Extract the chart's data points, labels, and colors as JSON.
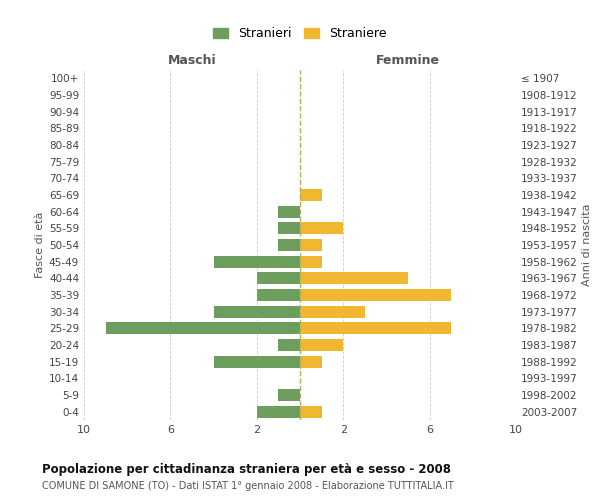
{
  "age_groups": [
    "0-4",
    "5-9",
    "10-14",
    "15-19",
    "20-24",
    "25-29",
    "30-34",
    "35-39",
    "40-44",
    "45-49",
    "50-54",
    "55-59",
    "60-64",
    "65-69",
    "70-74",
    "75-79",
    "80-84",
    "85-89",
    "90-94",
    "95-99",
    "100+"
  ],
  "birth_years": [
    "2003-2007",
    "1998-2002",
    "1993-1997",
    "1988-1992",
    "1983-1987",
    "1978-1982",
    "1973-1977",
    "1968-1972",
    "1963-1967",
    "1958-1962",
    "1953-1957",
    "1948-1952",
    "1943-1947",
    "1938-1942",
    "1933-1937",
    "1928-1932",
    "1923-1927",
    "1918-1922",
    "1913-1917",
    "1908-1912",
    "≤ 1907"
  ],
  "maschi": [
    2,
    1,
    0,
    4,
    1,
    9,
    4,
    2,
    2,
    4,
    1,
    1,
    1,
    0,
    0,
    0,
    0,
    0,
    0,
    0,
    0
  ],
  "femmine": [
    1,
    0,
    0,
    1,
    2,
    7,
    3,
    7,
    5,
    1,
    1,
    2,
    0,
    1,
    0,
    0,
    0,
    0,
    0,
    0,
    0
  ],
  "maschi_color": "#6e9e5e",
  "femmine_color": "#f0b730",
  "center_line_color": "#b0b060",
  "maschi_label": "Stranieri",
  "femmine_label": "Straniere",
  "left_header": "Maschi",
  "right_header": "Femmine",
  "left_yaxis_label": "Fasce di età",
  "right_yaxis_label": "Anni di nascita",
  "title": "Popolazione per cittadinanza straniera per età e sesso - 2008",
  "subtitle": "COMUNE DI SAMONE (TO) - Dati ISTAT 1° gennaio 2008 - Elaborazione TUTTITALIA.IT",
  "bg_color": "#ffffff",
  "grid_color": "#cccccc"
}
